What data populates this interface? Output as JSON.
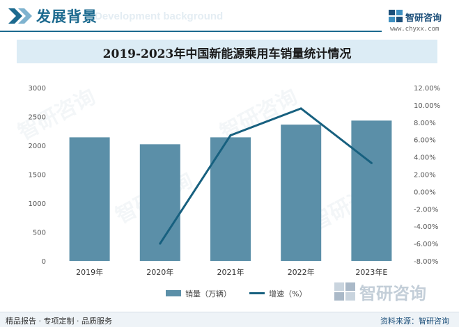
{
  "header": {
    "title": "发展背景",
    "subtitle": "Development background",
    "brand_name": "智研咨询",
    "brand_url": "www.chyxx.com"
  },
  "chart_data": {
    "type": "bar",
    "title": "2019-2023年中国新能源乘用车销量统计情况",
    "categories": [
      "2019年",
      "2020年",
      "2021年",
      "2022年",
      "2023年E"
    ],
    "series": [
      {
        "name": "销量（万辆）",
        "type": "bar",
        "axis": "left",
        "values": [
          2140,
          2020,
          2140,
          2360,
          2430
        ],
        "color": "#5b8fa8"
      },
      {
        "name": "增速（%）",
        "type": "line",
        "axis": "right",
        "values": [
          null,
          -6.0,
          6.5,
          9.6,
          3.3
        ],
        "color": "#17607f"
      }
    ],
    "y_left": {
      "min": 0,
      "max": 3000,
      "ticks": [
        "0",
        "500",
        "1000",
        "1500",
        "2000",
        "2500",
        "3000"
      ]
    },
    "y_right": {
      "min": -8,
      "max": 12,
      "ticks": [
        "-8.00%",
        "-6.00%",
        "-4.00%",
        "-2.00%",
        "0.00%",
        "2.00%",
        "4.00%",
        "6.00%",
        "8.00%",
        "10.00%",
        "12.00%"
      ]
    },
    "grid": false,
    "legend_position": "bottom"
  },
  "footer": {
    "left_text": "精品报告 · 专项定制 · 品质服务",
    "source_text": "资料来源：智研咨询"
  },
  "watermark_text": "智研咨询"
}
